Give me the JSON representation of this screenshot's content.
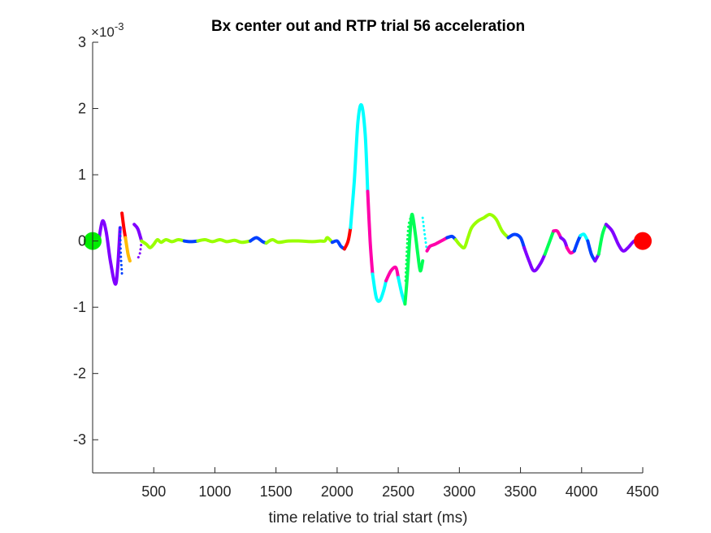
{
  "chart_data": {
    "type": "line",
    "title": "Bx  center out and RTP trial 56 acceleration",
    "xlabel": "time relative to trial start (ms)",
    "ylabel": "",
    "xlim": [
      0,
      4500
    ],
    "ylim": [
      -3.5,
      3
    ],
    "y_scale_factor": "10",
    "y_scale_exponent": "-3",
    "y_scale_prefix": "×",
    "xticks": [
      500,
      1000,
      1500,
      2000,
      2500,
      3000,
      3500,
      4000,
      4500
    ],
    "yticks": [
      -3,
      -2,
      -1,
      0,
      1,
      2,
      3
    ],
    "grid": false,
    "colors": {
      "green": "#99ff00",
      "purple": "#8000ff",
      "blue": "#0040ff",
      "cyan": "#00ffff",
      "magenta": "#ff00aa",
      "red": "#ff0000",
      "orange": "#ffbb00",
      "spring": "#00ff55",
      "start_marker": "#00ee00",
      "end_marker": "#ff0000"
    },
    "markers": [
      {
        "name": "start",
        "x": 0,
        "y": 0,
        "color": "start_marker"
      },
      {
        "name": "end",
        "x": 4500,
        "y": 0,
        "color": "end_marker"
      }
    ],
    "segments": [
      {
        "color": "purple",
        "style": "solid",
        "points": [
          [
            50,
            0
          ],
          [
            80,
            0.3
          ],
          [
            110,
            0.15
          ],
          [
            145,
            -0.3
          ],
          [
            185,
            -0.65
          ],
          [
            205,
            -0.4
          ],
          [
            225,
            0.2
          ]
        ]
      },
      {
        "color": "blue",
        "style": "dotted",
        "points": [
          [
            225,
            0.2
          ],
          [
            230,
            -0.2
          ],
          [
            240,
            -0.5
          ]
        ]
      },
      {
        "color": "red",
        "style": "solid",
        "points": [
          [
            240,
            0.42
          ],
          [
            255,
            0.2
          ],
          [
            268,
            0.05
          ]
        ]
      },
      {
        "color": "orange",
        "style": "solid",
        "points": [
          [
            268,
            0.05
          ],
          [
            290,
            -0.2
          ],
          [
            305,
            -0.3
          ]
        ]
      },
      {
        "color": "purple",
        "style": "solid",
        "points": [
          [
            340,
            0.25
          ],
          [
            370,
            0.18
          ],
          [
            400,
            0
          ]
        ]
      },
      {
        "color": "purple",
        "style": "dotted",
        "points": [
          [
            400,
            0
          ],
          [
            385,
            -0.2
          ],
          [
            360,
            -0.28
          ]
        ]
      },
      {
        "color": "green",
        "style": "solid",
        "points": [
          [
            400,
            0
          ],
          [
            440,
            -0.05
          ],
          [
            470,
            -0.1
          ],
          [
            500,
            -0.05
          ],
          [
            530,
            0.02
          ],
          [
            560,
            -0.02
          ],
          [
            600,
            0.02
          ],
          [
            650,
            -0.01
          ],
          [
            700,
            0.02
          ],
          [
            750,
            0
          ]
        ]
      },
      {
        "color": "blue",
        "style": "solid",
        "points": [
          [
            750,
            0
          ],
          [
            800,
            -0.01
          ],
          [
            860,
            0
          ]
        ]
      },
      {
        "color": "green",
        "style": "solid",
        "points": [
          [
            860,
            0
          ],
          [
            920,
            0.02
          ],
          [
            980,
            -0.01
          ],
          [
            1040,
            0.02
          ],
          [
            1100,
            -0.01
          ],
          [
            1160,
            0.01
          ],
          [
            1220,
            -0.02
          ],
          [
            1290,
            0
          ]
        ]
      },
      {
        "color": "blue",
        "style": "solid",
        "points": [
          [
            1290,
            0
          ],
          [
            1340,
            0.05
          ],
          [
            1390,
            -0.01
          ],
          [
            1420,
            -0.03
          ]
        ]
      },
      {
        "color": "green",
        "style": "solid",
        "points": [
          [
            1420,
            -0.03
          ],
          [
            1470,
            0.02
          ],
          [
            1520,
            -0.02
          ],
          [
            1600,
            0
          ],
          [
            1700,
            0
          ],
          [
            1800,
            -0.01
          ],
          [
            1860,
            0
          ],
          [
            1900,
            0
          ],
          [
            1920,
            0.05
          ],
          [
            1960,
            -0.02
          ]
        ]
      },
      {
        "color": "blue",
        "style": "solid",
        "points": [
          [
            1960,
            -0.02
          ],
          [
            2000,
            0
          ],
          [
            2030,
            -0.08
          ],
          [
            2060,
            -0.12
          ]
        ]
      },
      {
        "color": "red",
        "style": "solid",
        "points": [
          [
            2060,
            -0.12
          ],
          [
            2090,
            0
          ],
          [
            2110,
            0.2
          ]
        ]
      },
      {
        "color": "cyan",
        "style": "solid",
        "points": [
          [
            2110,
            0.2
          ],
          [
            2140,
            0.9
          ],
          [
            2170,
            1.8
          ],
          [
            2200,
            2.05
          ],
          [
            2230,
            1.6
          ],
          [
            2250,
            0.75
          ]
        ]
      },
      {
        "color": "magenta",
        "style": "solid",
        "points": [
          [
            2250,
            0.75
          ],
          [
            2270,
            0
          ],
          [
            2290,
            -0.5
          ]
        ]
      },
      {
        "color": "cyan",
        "style": "solid",
        "points": [
          [
            2290,
            -0.5
          ],
          [
            2320,
            -0.85
          ],
          [
            2350,
            -0.9
          ],
          [
            2380,
            -0.75
          ],
          [
            2400,
            -0.6
          ]
        ]
      },
      {
        "color": "magenta",
        "style": "solid",
        "points": [
          [
            2400,
            -0.6
          ],
          [
            2440,
            -0.45
          ],
          [
            2480,
            -0.4
          ],
          [
            2500,
            -0.55
          ]
        ]
      },
      {
        "color": "cyan",
        "style": "solid",
        "points": [
          [
            2500,
            -0.55
          ],
          [
            2530,
            -0.8
          ],
          [
            2555,
            -0.95
          ]
        ]
      },
      {
        "color": "spring",
        "style": "solid",
        "points": [
          [
            2555,
            -0.95
          ],
          [
            2575,
            -0.5
          ],
          [
            2600,
            0.2
          ],
          [
            2615,
            0.4
          ],
          [
            2640,
            0.1
          ],
          [
            2660,
            -0.2
          ],
          [
            2680,
            -0.45
          ],
          [
            2700,
            -0.3
          ]
        ]
      },
      {
        "color": "spring",
        "style": "dotted",
        "points": [
          [
            2560,
            -0.6
          ],
          [
            2580,
            0.15
          ],
          [
            2600,
            0.35
          ]
        ]
      },
      {
        "color": "cyan",
        "style": "dotted",
        "points": [
          [
            2700,
            0.35
          ],
          [
            2720,
            0.05
          ],
          [
            2735,
            -0.15
          ]
        ]
      },
      {
        "color": "magenta",
        "style": "solid",
        "points": [
          [
            2735,
            -0.15
          ],
          [
            2760,
            -0.08
          ],
          [
            2800,
            -0.05
          ],
          [
            2850,
            0
          ],
          [
            2900,
            0.05
          ]
        ]
      },
      {
        "color": "blue",
        "style": "solid",
        "points": [
          [
            2900,
            0.05
          ],
          [
            2940,
            0.07
          ],
          [
            2970,
            0.02
          ]
        ]
      },
      {
        "color": "green",
        "style": "solid",
        "points": [
          [
            2970,
            0.02
          ],
          [
            3000,
            -0.05
          ],
          [
            3040,
            -0.1
          ],
          [
            3070,
            0.05
          ],
          [
            3100,
            0.2
          ],
          [
            3150,
            0.3
          ],
          [
            3200,
            0.35
          ],
          [
            3250,
            0.4
          ],
          [
            3300,
            0.33
          ],
          [
            3350,
            0.15
          ],
          [
            3400,
            0.05
          ]
        ]
      },
      {
        "color": "blue",
        "style": "solid",
        "points": [
          [
            3400,
            0.05
          ],
          [
            3450,
            0.1
          ],
          [
            3500,
            0.05
          ],
          [
            3530,
            -0.1
          ]
        ]
      },
      {
        "color": "purple",
        "style": "solid",
        "points": [
          [
            3530,
            -0.1
          ],
          [
            3570,
            -0.3
          ],
          [
            3610,
            -0.45
          ],
          [
            3660,
            -0.35
          ],
          [
            3700,
            -0.2
          ]
        ]
      },
      {
        "color": "spring",
        "style": "solid",
        "points": [
          [
            3700,
            -0.2
          ],
          [
            3740,
            0
          ],
          [
            3770,
            0.15
          ]
        ]
      },
      {
        "color": "magenta",
        "style": "solid",
        "points": [
          [
            3770,
            0.15
          ],
          [
            3800,
            0.15
          ],
          [
            3830,
            0.05
          ]
        ]
      },
      {
        "color": "purple",
        "style": "solid",
        "points": [
          [
            3830,
            0.05
          ],
          [
            3860,
            0
          ],
          [
            3880,
            -0.1
          ]
        ]
      },
      {
        "color": "magenta",
        "style": "solid",
        "points": [
          [
            3880,
            -0.1
          ],
          [
            3910,
            -0.18
          ],
          [
            3940,
            -0.15
          ]
        ]
      },
      {
        "color": "blue",
        "style": "solid",
        "points": [
          [
            3940,
            -0.15
          ],
          [
            3970,
            0
          ],
          [
            3990,
            0.08
          ]
        ]
      },
      {
        "color": "cyan",
        "style": "solid",
        "points": [
          [
            3990,
            0.08
          ],
          [
            4020,
            0.1
          ],
          [
            4050,
            0
          ]
        ]
      },
      {
        "color": "blue",
        "style": "solid",
        "points": [
          [
            4050,
            0
          ],
          [
            4080,
            -0.2
          ],
          [
            4110,
            -0.3
          ]
        ]
      },
      {
        "color": "purple",
        "style": "solid",
        "points": [
          [
            4110,
            -0.3
          ],
          [
            4140,
            -0.2
          ]
        ]
      },
      {
        "color": "spring",
        "style": "solid",
        "points": [
          [
            4140,
            -0.2
          ],
          [
            4170,
            0.1
          ],
          [
            4200,
            0.25
          ]
        ]
      },
      {
        "color": "purple",
        "style": "solid",
        "points": [
          [
            4200,
            0.25
          ],
          [
            4250,
            0.15
          ],
          [
            4300,
            -0.05
          ],
          [
            4340,
            -0.15
          ],
          [
            4380,
            -0.1
          ],
          [
            4430,
            0
          ],
          [
            4470,
            0
          ]
        ]
      }
    ]
  }
}
